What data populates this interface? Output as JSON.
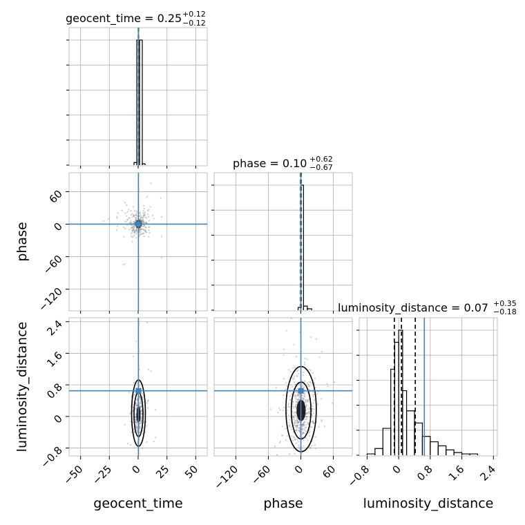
{
  "chart_data": [
    {
      "type": "histogram",
      "panel": "1D marginal",
      "parameter": "geocent_time",
      "title": {
        "text": "geocent_time = 0.25",
        "upper": "+0.12",
        "lower": "−0.12"
      },
      "xlim": [
        -60,
        60
      ],
      "xticks": [
        -50,
        -25,
        0,
        25,
        50
      ],
      "bins": [
        {
          "x0": -3.6,
          "x1": -1.2,
          "count": 0.02
        },
        {
          "x0": -1.2,
          "x1": 1.2,
          "count": 0.97
        },
        {
          "x0": 1.2,
          "x1": 3.6,
          "count": 0.97
        },
        {
          "x0": 3.6,
          "x1": 6.0,
          "count": 0.01
        }
      ],
      "quantiles": [
        0.13,
        0.25,
        0.37
      ],
      "truth": 0.25,
      "grid": true
    },
    {
      "type": "histogram",
      "panel": "1D marginal",
      "parameter": "phase",
      "title": {
        "text": "phase = 0.10",
        "upper": "+0.62",
        "lower": "−0.67"
      },
      "xlim": [
        -160,
        95
      ],
      "xticks": [
        -120,
        -60,
        0,
        60
      ],
      "bins": [
        {
          "x0": -5,
          "x1": 0,
          "count": 0.02
        },
        {
          "x0": 0,
          "x1": 5,
          "count": 0.92
        },
        {
          "x0": 5,
          "x1": 12,
          "count": 0.03
        },
        {
          "x0": 12,
          "x1": 20,
          "count": 0.01
        }
      ],
      "quantiles": [
        -0.57,
        0.1,
        0.72
      ],
      "truth": 0.1,
      "grid": true
    },
    {
      "type": "histogram",
      "panel": "1D marginal",
      "parameter": "luminosity_distance",
      "title": {
        "text": "luminosity_distance = 0.07",
        "upper": "+0.35",
        "lower": "−0.18"
      },
      "xlim": [
        -1.0,
        2.5
      ],
      "xticks": [
        -0.8,
        0.0,
        0.8,
        1.6,
        2.4
      ],
      "bins": [
        {
          "x0": -0.8,
          "x1": -0.6,
          "count": 0.01
        },
        {
          "x0": -0.6,
          "x1": -0.4,
          "count": 0.05
        },
        {
          "x0": -0.4,
          "x1": -0.2,
          "count": 0.2
        },
        {
          "x0": -0.2,
          "x1": -0.1,
          "count": 0.64
        },
        {
          "x0": -0.1,
          "x1": 0.0,
          "count": 0.84
        },
        {
          "x0": 0.0,
          "x1": 0.1,
          "count": 0.93
        },
        {
          "x0": 0.1,
          "x1": 0.2,
          "count": 0.48
        },
        {
          "x0": 0.2,
          "x1": 0.4,
          "count": 0.33
        },
        {
          "x0": 0.4,
          "x1": 0.6,
          "count": 0.24
        },
        {
          "x0": 0.6,
          "x1": 0.8,
          "count": 0.14
        },
        {
          "x0": 0.8,
          "x1": 1.0,
          "count": 0.1
        },
        {
          "x0": 1.0,
          "x1": 1.2,
          "count": 0.07
        },
        {
          "x0": 1.2,
          "x1": 1.4,
          "count": 0.04
        },
        {
          "x0": 1.4,
          "x1": 1.6,
          "count": 0.02
        },
        {
          "x0": 1.6,
          "x1": 1.8,
          "count": 0.01
        },
        {
          "x0": 1.8,
          "x1": 2.0,
          "count": 0.01
        }
      ],
      "quantiles": [
        -0.11,
        0.07,
        0.42
      ],
      "truth": 0.65,
      "grid": true
    },
    {
      "type": "scatter",
      "panel": "2D marginal",
      "x_parameter": "geocent_time",
      "y_parameter": "phase",
      "xlim": [
        -60,
        60
      ],
      "ylim": [
        -160,
        95
      ],
      "xticks": [
        -50,
        -25,
        0,
        25,
        50
      ],
      "yticks": [
        -120,
        -60,
        0,
        60
      ],
      "truth": [
        0.25,
        0.1
      ],
      "point_cloud": {
        "center": [
          0.3,
          0.0
        ],
        "spread": [
          5.0,
          12.0
        ],
        "count": 260
      },
      "grid": true
    },
    {
      "type": "scatter",
      "panel": "2D marginal",
      "x_parameter": "geocent_time",
      "y_parameter": "luminosity_distance",
      "xlim": [
        -60,
        60
      ],
      "ylim": [
        -1.0,
        2.5
      ],
      "xticks": [
        -50,
        -25,
        0,
        25,
        50
      ],
      "yticks": [
        -0.8,
        0.0,
        0.8,
        1.6,
        2.4
      ],
      "truth": [
        0.25,
        0.65
      ],
      "point_cloud": {
        "center": [
          0.3,
          0.05
        ],
        "spread": [
          3.0,
          0.35
        ],
        "count": 300
      },
      "contours": "density",
      "grid": true
    },
    {
      "type": "scatter",
      "panel": "2D marginal",
      "x_parameter": "phase",
      "y_parameter": "luminosity_distance",
      "xlim": [
        -160,
        95
      ],
      "ylim": [
        -1.0,
        2.5
      ],
      "xticks": [
        -120,
        -60,
        0,
        60
      ],
      "yticks": [
        -0.8,
        0.0,
        0.8,
        1.6,
        2.4
      ],
      "truth": [
        0.1,
        0.65
      ],
      "point_cloud": {
        "center": [
          0.5,
          0.15
        ],
        "spread": [
          14.0,
          0.45
        ],
        "count": 520
      },
      "contours": "density",
      "grid": true
    }
  ],
  "labels": {
    "x": [
      "geocent_time",
      "phase",
      "luminosity_distance"
    ],
    "y": [
      "phase",
      "luminosity_distance"
    ]
  },
  "colors": {
    "truth": "#4682b4",
    "hist": "#000000",
    "points": "#808080",
    "grid": "#b0b0b0"
  }
}
